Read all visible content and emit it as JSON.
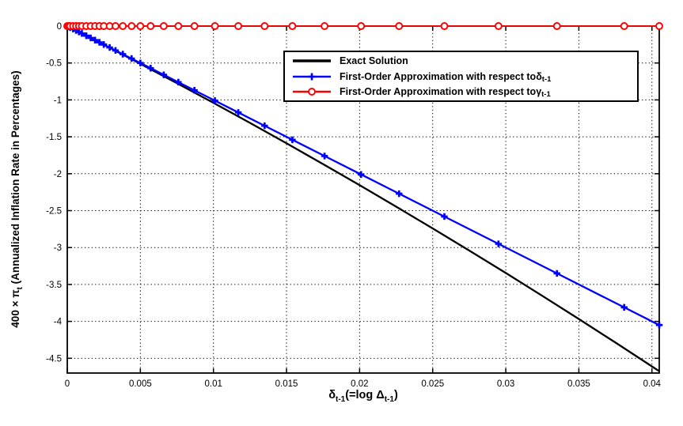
{
  "figure": {
    "background": "#ffffff",
    "axis_color": "#000000",
    "grid_color": "#000000"
  },
  "chart_data": {
    "type": "line",
    "title": "",
    "xlabel": "delta_(t-1) (= log Delta_(t-1))",
    "ylabel": "400 x pi_t (Annualized Inflation Rate in Percentages)",
    "xlabel_parts": {
      "sym1": "δ",
      "sub1": "t-1",
      "mid": "(=log ",
      "sym2": "Δ",
      "sub2": "t-1",
      "close": ")"
    },
    "ylabel_parts": {
      "pre": "400 × π",
      "sub": "t",
      "post": " (Annualized Inflation Rate in Percentages)"
    },
    "xlim": [
      0,
      0.0405
    ],
    "ylim": [
      -4.7,
      0
    ],
    "xticks": [
      0,
      0.005,
      0.01,
      0.015,
      0.02,
      0.025,
      0.03,
      0.035,
      0.04
    ],
    "xtick_labels": [
      "0",
      "0.005",
      "0.01",
      "0.015",
      "0.02",
      "0.025",
      "0.03",
      "0.035",
      "0.04"
    ],
    "yticks": [
      0,
      -0.5,
      -1,
      -1.5,
      -2,
      -2.5,
      -3,
      -3.5,
      -4,
      -4.5
    ],
    "ytick_labels": [
      "0",
      "-0.5",
      "-1",
      "-1.5",
      "-2",
      "-2.5",
      "-3",
      "-3.5",
      "-4",
      "-4.5"
    ],
    "grid": "dotted",
    "grid_color": "#000000",
    "legend": {
      "position": "inside-top-center",
      "entries": [
        {
          "id": "exact",
          "label_text": "Exact Solution",
          "symbol": "",
          "subscript": "",
          "color": "#000000",
          "marker": "none"
        },
        {
          "id": "delta-approx",
          "label_text": "First-Order Approximation with respect to ",
          "symbol": "δ",
          "subscript": "t-1",
          "color": "#0000ff",
          "marker": "plus"
        },
        {
          "id": "gamma-approx",
          "label_text": "First-Order Approximation with respect to ",
          "symbol": "γ",
          "subscript": "t-1",
          "color": "#ff0000",
          "marker": "circle"
        }
      ]
    },
    "series": [
      {
        "id": "exact-solution",
        "name": "Exact Solution",
        "color": "#000000",
        "marker": "none",
        "line_width": 2.3,
        "x": [
          0,
          0.0025,
          0.005,
          0.0075,
          0.01,
          0.0125,
          0.015,
          0.0175,
          0.02,
          0.0225,
          0.025,
          0.0275,
          0.03,
          0.0325,
          0.035,
          0.0375,
          0.04,
          0.0405
        ],
        "y": [
          0,
          -0.253,
          -0.511,
          -0.773,
          -1.04,
          -1.312,
          -1.588,
          -1.869,
          -2.155,
          -2.446,
          -2.741,
          -3.041,
          -3.345,
          -3.654,
          -3.968,
          -4.287,
          -4.61,
          -4.675
        ]
      },
      {
        "id": "first-order-delta",
        "name": "First-Order Approximation with respect to delta_(t-1)",
        "color": "#0000ff",
        "marker": "plus",
        "line_width": 2.3,
        "x": [
          0,
          0.0001,
          0.0002,
          0.0004,
          0.0006,
          0.0008,
          0.001,
          0.0013,
          0.0016,
          0.0019,
          0.0022,
          0.0025,
          0.0029,
          0.0033,
          0.0038,
          0.0044,
          0.005,
          0.0057,
          0.0066,
          0.0076,
          0.0087,
          0.0101,
          0.0117,
          0.0135,
          0.0154,
          0.0176,
          0.0201,
          0.0227,
          0.0258,
          0.0295,
          0.0335,
          0.0381,
          0.0405
        ],
        "y": [
          0,
          -0.01,
          -0.02,
          -0.04,
          -0.06,
          -0.08,
          -0.1,
          -0.13,
          -0.16,
          -0.19,
          -0.22,
          -0.25,
          -0.29,
          -0.33,
          -0.38,
          -0.44,
          -0.5,
          -0.57,
          -0.66,
          -0.76,
          -0.87,
          -1.01,
          -1.17,
          -1.35,
          -1.54,
          -1.76,
          -2.01,
          -2.27,
          -2.58,
          -2.95,
          -3.35,
          -3.81,
          -4.05
        ]
      },
      {
        "id": "first-order-gamma",
        "name": "First-Order Approximation with respect to gamma_(t-1)",
        "color": "#ff0000",
        "marker": "circle",
        "line_width": 1.8,
        "x": [
          0,
          0.0001,
          0.0002,
          0.0004,
          0.0006,
          0.0008,
          0.001,
          0.0013,
          0.0016,
          0.0019,
          0.0022,
          0.0025,
          0.0029,
          0.0033,
          0.0038,
          0.0044,
          0.005,
          0.0057,
          0.0066,
          0.0076,
          0.0087,
          0.0101,
          0.0117,
          0.0135,
          0.0154,
          0.0176,
          0.0201,
          0.0227,
          0.0258,
          0.0295,
          0.0335,
          0.0381,
          0.0405
        ],
        "y": [
          0,
          0,
          0,
          0,
          0,
          0,
          0,
          0,
          0,
          0,
          0,
          0,
          0,
          0,
          0,
          0,
          0,
          0,
          0,
          0,
          0,
          0,
          0,
          0,
          0,
          0,
          0,
          0,
          0,
          0,
          0,
          0,
          0
        ]
      }
    ]
  }
}
